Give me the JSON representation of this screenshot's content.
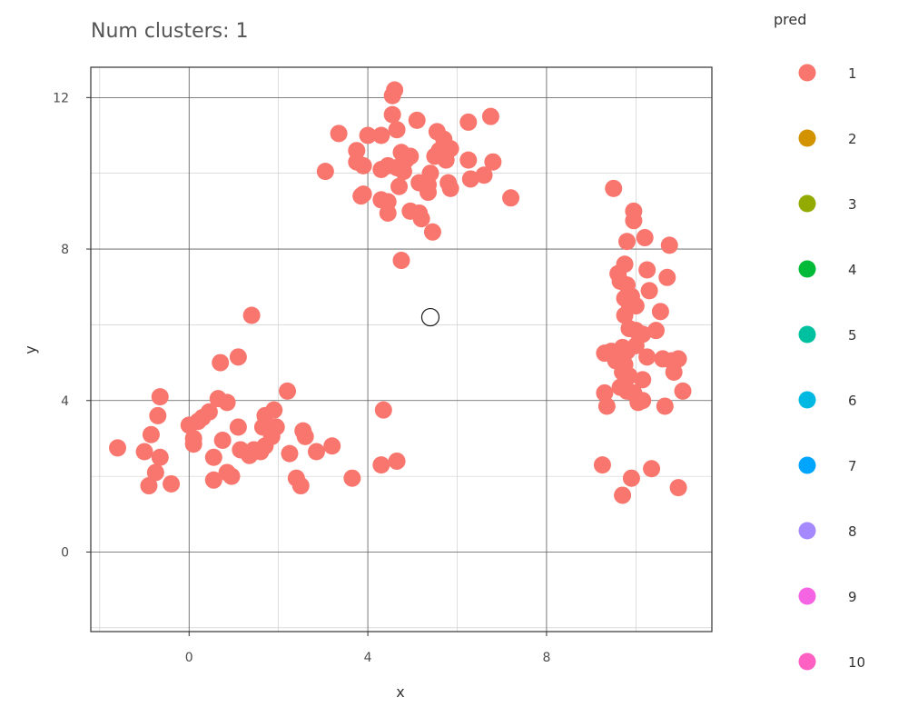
{
  "chart_data": {
    "type": "scatter",
    "title": "Num clusters: 1",
    "xlabel": "x",
    "ylabel": "y",
    "xlim": [
      -2.2,
      11.7
    ],
    "ylim": [
      -2.1,
      12.8
    ],
    "x_ticks": [
      0,
      4,
      8
    ],
    "y_ticks": [
      0,
      4,
      8,
      12
    ],
    "grid": true,
    "legend": {
      "title": "pred",
      "placement": "right",
      "entries": [
        {
          "label": "1",
          "color": "#f8766d"
        },
        {
          "label": "2",
          "color": "#d39200"
        },
        {
          "label": "3",
          "color": "#93aa00"
        },
        {
          "label": "4",
          "color": "#00ba38"
        },
        {
          "label": "5",
          "color": "#00c19f"
        },
        {
          "label": "6",
          "color": "#00b9e3"
        },
        {
          "label": "7",
          "color": "#00a5ff"
        },
        {
          "label": "8",
          "color": "#a58aff"
        },
        {
          "label": "9",
          "color": "#f564e3"
        },
        {
          "label": "10",
          "color": "#ff61c3"
        }
      ]
    },
    "centroids": [
      {
        "x": 5.4,
        "y": 6.2,
        "cluster": "1"
      }
    ],
    "series": [
      {
        "name": "1",
        "color": "#f8766d",
        "points": [
          [
            -1.6,
            2.75
          ],
          [
            -1.0,
            2.65
          ],
          [
            -0.85,
            3.1
          ],
          [
            -0.7,
            3.6
          ],
          [
            -0.65,
            4.1
          ],
          [
            -0.65,
            2.5
          ],
          [
            -0.75,
            2.1
          ],
          [
            -0.9,
            1.75
          ],
          [
            -0.4,
            1.8
          ],
          [
            0.0,
            3.35
          ],
          [
            0.1,
            3.0
          ],
          [
            0.1,
            2.85
          ],
          [
            0.2,
            3.45
          ],
          [
            0.3,
            3.55
          ],
          [
            0.45,
            3.7
          ],
          [
            0.65,
            4.05
          ],
          [
            0.85,
            3.95
          ],
          [
            0.7,
            5.0
          ],
          [
            1.1,
            5.15
          ],
          [
            1.4,
            6.25
          ],
          [
            0.55,
            2.5
          ],
          [
            0.75,
            2.95
          ],
          [
            1.1,
            3.3
          ],
          [
            1.15,
            2.7
          ],
          [
            1.35,
            2.55
          ],
          [
            1.45,
            2.7
          ],
          [
            1.6,
            2.65
          ],
          [
            1.7,
            2.8
          ],
          [
            1.65,
            3.3
          ],
          [
            1.7,
            3.6
          ],
          [
            1.85,
            3.05
          ],
          [
            1.9,
            3.75
          ],
          [
            1.95,
            3.3
          ],
          [
            2.2,
            4.25
          ],
          [
            2.25,
            2.6
          ],
          [
            0.85,
            2.1
          ],
          [
            0.95,
            2.0
          ],
          [
            0.55,
            1.9
          ],
          [
            2.4,
            1.95
          ],
          [
            2.5,
            1.75
          ],
          [
            2.55,
            3.2
          ],
          [
            2.6,
            3.05
          ],
          [
            2.85,
            2.65
          ],
          [
            3.2,
            2.8
          ],
          [
            3.65,
            1.95
          ],
          [
            4.3,
            2.3
          ],
          [
            4.65,
            2.4
          ],
          [
            4.35,
            3.75
          ],
          [
            3.05,
            10.05
          ],
          [
            3.35,
            11.05
          ],
          [
            3.75,
            10.6
          ],
          [
            3.75,
            10.3
          ],
          [
            3.9,
            10.2
          ],
          [
            3.9,
            9.45
          ],
          [
            3.85,
            9.4
          ],
          [
            4.0,
            11.0
          ],
          [
            4.3,
            11.0
          ],
          [
            4.3,
            10.1
          ],
          [
            4.3,
            9.3
          ],
          [
            4.45,
            9.25
          ],
          [
            4.45,
            8.95
          ],
          [
            4.45,
            10.2
          ],
          [
            4.55,
            11.55
          ],
          [
            4.55,
            12.05
          ],
          [
            4.6,
            12.2
          ],
          [
            4.65,
            11.15
          ],
          [
            4.65,
            10.15
          ],
          [
            4.7,
            9.65
          ],
          [
            4.75,
            10.55
          ],
          [
            4.8,
            10.05
          ],
          [
            4.85,
            10.35
          ],
          [
            4.95,
            10.45
          ],
          [
            4.95,
            9.0
          ],
          [
            5.1,
            11.4
          ],
          [
            5.15,
            9.75
          ],
          [
            5.15,
            8.95
          ],
          [
            5.2,
            8.8
          ],
          [
            5.35,
            9.5
          ],
          [
            5.35,
            9.7
          ],
          [
            5.4,
            10.0
          ],
          [
            5.45,
            8.45
          ],
          [
            5.5,
            10.45
          ],
          [
            5.55,
            11.1
          ],
          [
            5.6,
            10.6
          ],
          [
            5.7,
            10.9
          ],
          [
            5.75,
            10.35
          ],
          [
            5.8,
            9.75
          ],
          [
            5.85,
            9.6
          ],
          [
            5.85,
            10.65
          ],
          [
            6.25,
            11.35
          ],
          [
            6.25,
            10.35
          ],
          [
            6.3,
            9.85
          ],
          [
            6.6,
            9.95
          ],
          [
            6.75,
            11.5
          ],
          [
            6.8,
            10.3
          ],
          [
            7.2,
            9.35
          ],
          [
            4.75,
            7.7
          ],
          [
            9.5,
            9.6
          ],
          [
            9.8,
            8.2
          ],
          [
            9.95,
            9.0
          ],
          [
            9.95,
            8.75
          ],
          [
            10.2,
            8.3
          ],
          [
            10.75,
            8.1
          ],
          [
            9.75,
            7.6
          ],
          [
            9.6,
            7.35
          ],
          [
            9.65,
            7.15
          ],
          [
            9.8,
            7.05
          ],
          [
            10.25,
            7.45
          ],
          [
            10.7,
            7.25
          ],
          [
            9.75,
            6.7
          ],
          [
            9.9,
            6.75
          ],
          [
            9.85,
            6.55
          ],
          [
            10.0,
            6.5
          ],
          [
            9.75,
            6.25
          ],
          [
            10.3,
            6.9
          ],
          [
            10.55,
            6.35
          ],
          [
            9.85,
            5.9
          ],
          [
            10.0,
            5.85
          ],
          [
            10.45,
            5.85
          ],
          [
            10.15,
            5.75
          ],
          [
            9.3,
            5.25
          ],
          [
            9.45,
            5.3
          ],
          [
            9.6,
            5.2
          ],
          [
            9.7,
            5.4
          ],
          [
            9.8,
            5.3
          ],
          [
            9.55,
            5.05
          ],
          [
            9.75,
            4.95
          ],
          [
            10.0,
            5.45
          ],
          [
            10.25,
            5.15
          ],
          [
            10.6,
            5.1
          ],
          [
            10.8,
            5.05
          ],
          [
            10.95,
            5.1
          ],
          [
            9.7,
            4.75
          ],
          [
            9.85,
            4.65
          ],
          [
            9.75,
            4.45
          ],
          [
            10.15,
            4.55
          ],
          [
            9.65,
            4.35
          ],
          [
            9.8,
            4.25
          ],
          [
            9.95,
            4.2
          ],
          [
            10.05,
            4.0
          ],
          [
            10.15,
            4.0
          ],
          [
            9.3,
            4.2
          ],
          [
            9.35,
            3.85
          ],
          [
            10.65,
            3.85
          ],
          [
            10.85,
            4.75
          ],
          [
            11.05,
            4.25
          ],
          [
            10.05,
            3.95
          ],
          [
            9.25,
            2.3
          ],
          [
            9.7,
            1.5
          ],
          [
            9.9,
            1.95
          ],
          [
            10.35,
            2.2
          ],
          [
            10.95,
            1.7
          ]
        ]
      }
    ]
  }
}
